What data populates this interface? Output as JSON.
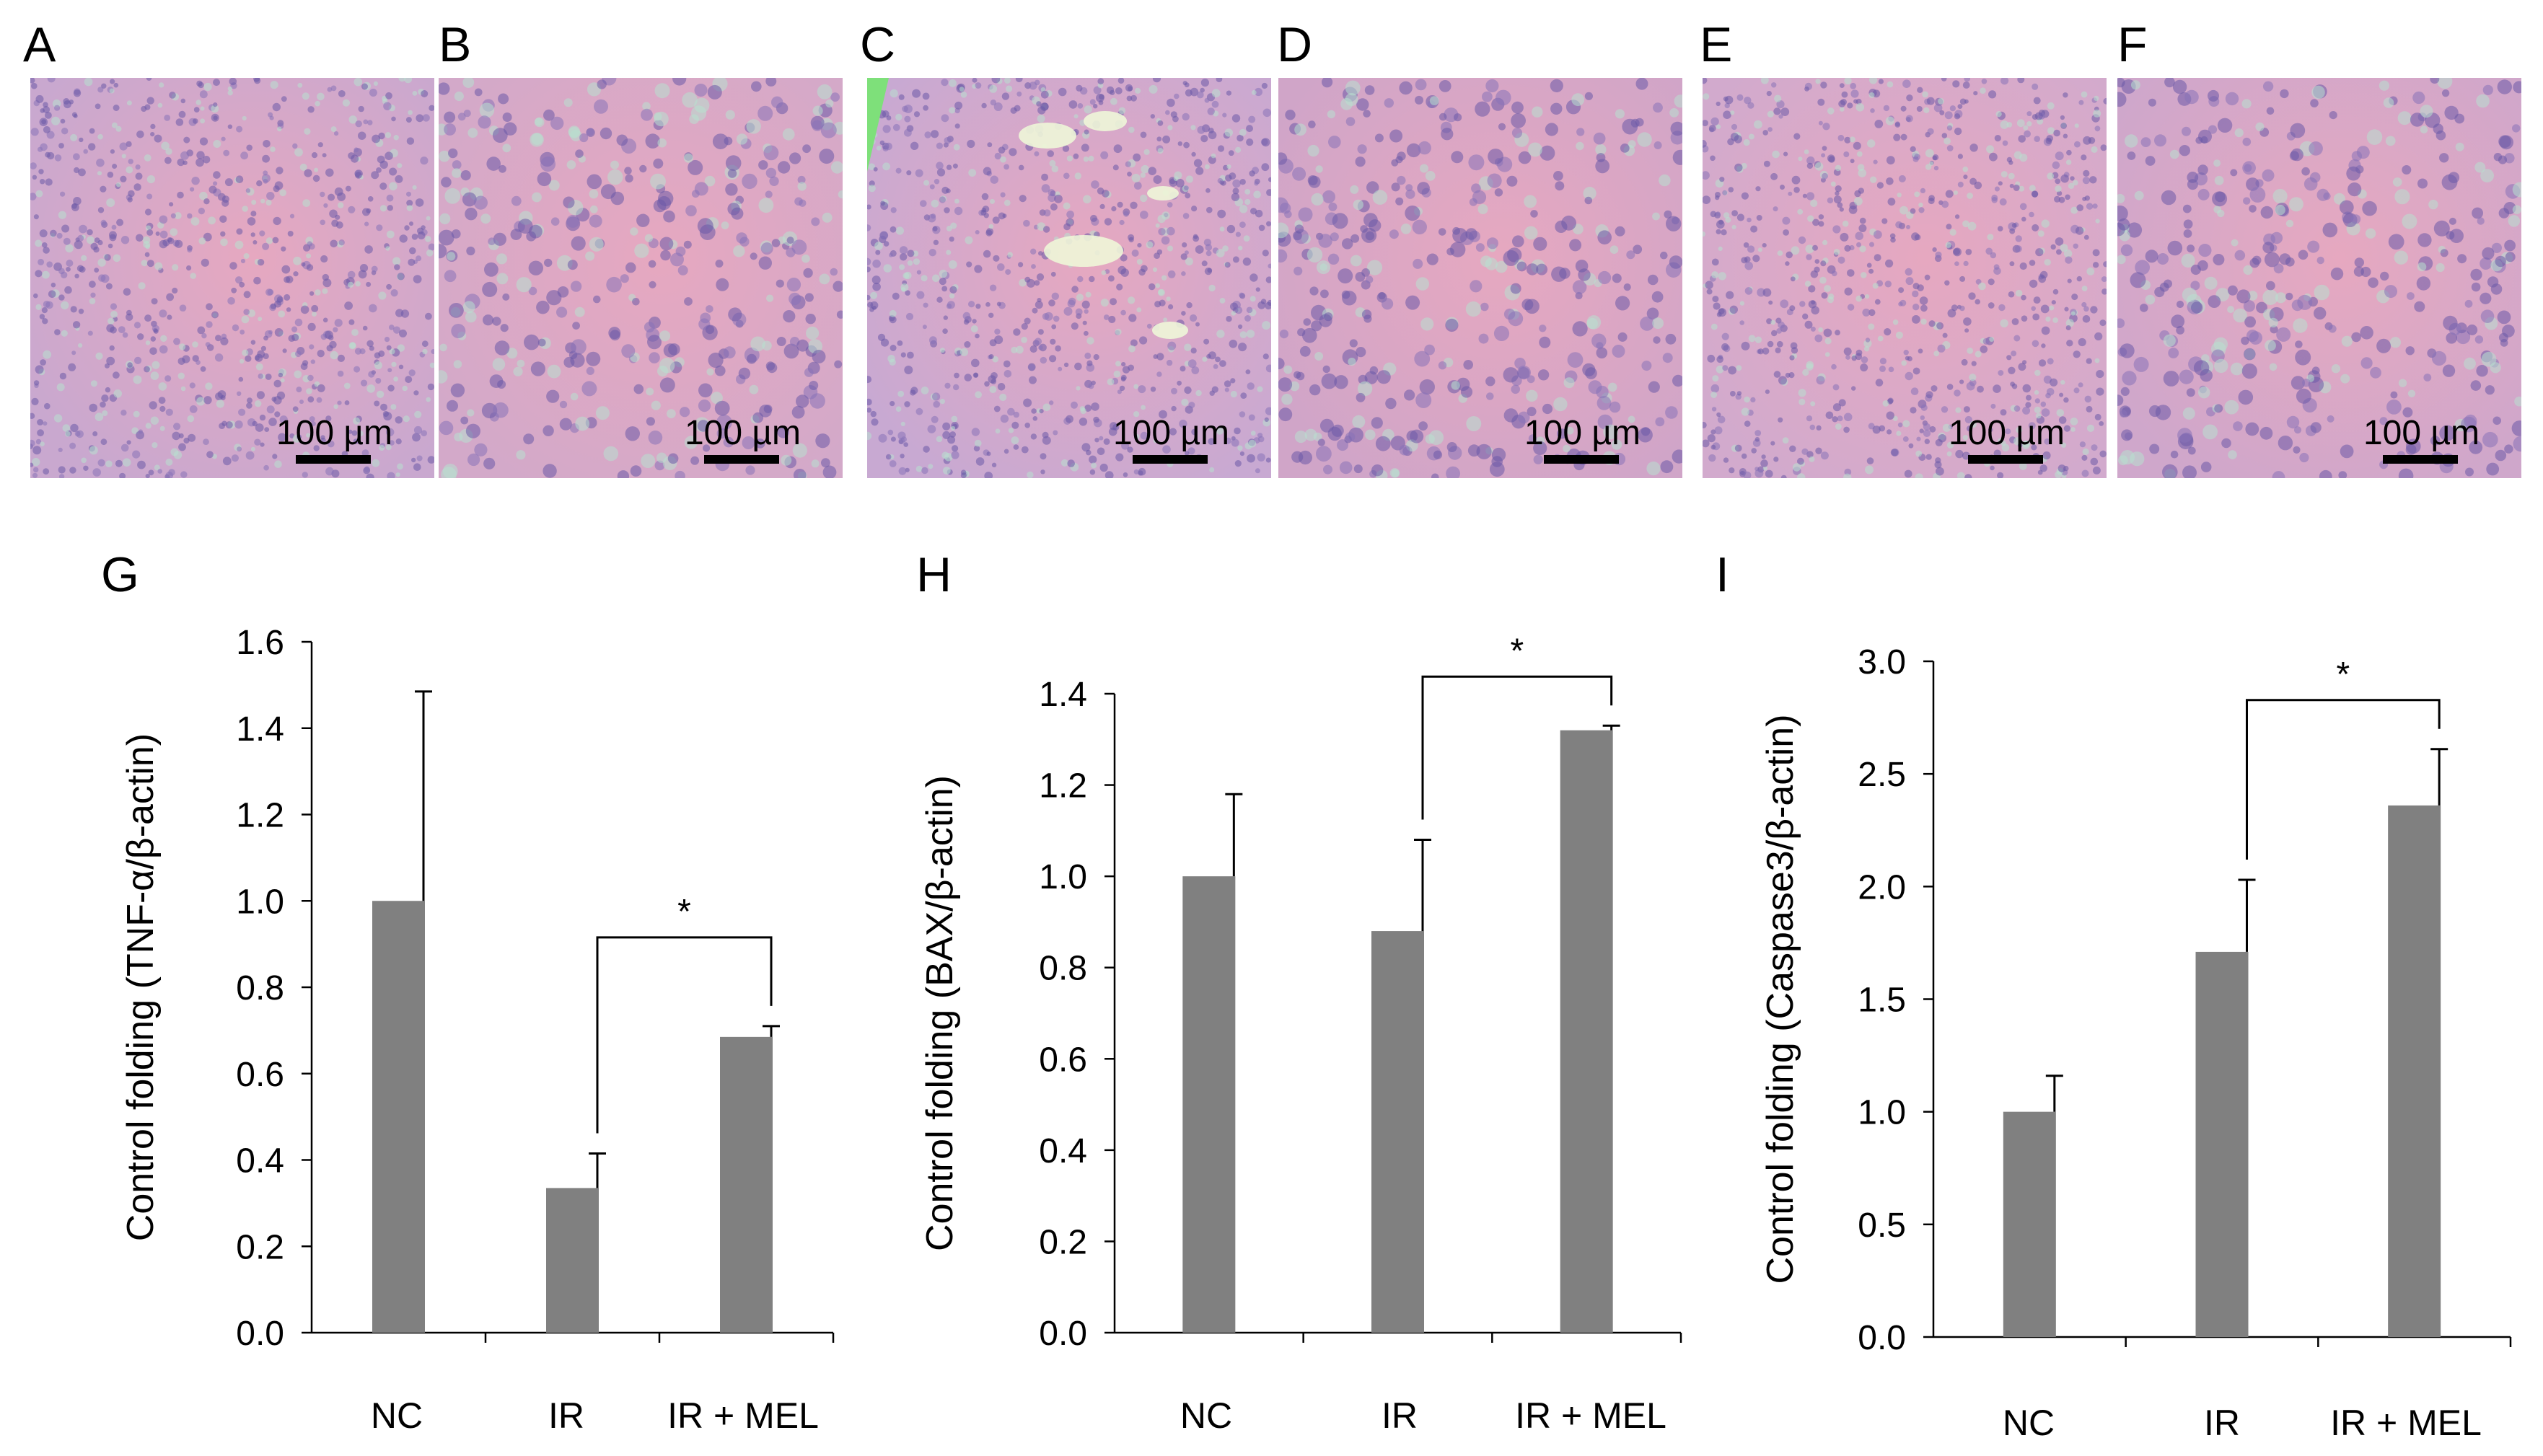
{
  "micrographs": [
    {
      "letter": "A",
      "scale_label": "100 µm",
      "tone": "#c9a8cf"
    },
    {
      "letter": "B",
      "scale_label": "100 µm",
      "tone": "#d3a9c9"
    },
    {
      "letter": "C",
      "scale_label": "100 µm",
      "tone": "#c8a9d2"
    },
    {
      "letter": "D",
      "scale_label": "100 µm",
      "tone": "#d0a5c8"
    },
    {
      "letter": "E",
      "scale_label": "100 µm",
      "tone": "#d2aacd"
    },
    {
      "letter": "F",
      "scale_label": "100 µm",
      "tone": "#cfa7cb"
    }
  ],
  "chart_data": [
    {
      "type": "bar",
      "panel": "G",
      "categories": [
        "NC",
        "IR",
        "IR + MEL"
      ],
      "values": [
        1.0,
        0.335,
        0.685
      ],
      "errors": [
        0.485,
        0.08,
        0.025
      ],
      "ylabel": "Control folding (TNF-α/β-actin)",
      "ylim": [
        0,
        1.6
      ],
      "ticks": [
        "0.0",
        "0.2",
        "0.4",
        "0.6",
        "0.8",
        "1.0",
        "1.2",
        "1.4",
        "1.6"
      ],
      "significance": {
        "from": 1,
        "to": 2,
        "label": "*"
      },
      "bar_color": "#808080"
    },
    {
      "type": "bar",
      "panel": "H",
      "categories": [
        "NC",
        "IR",
        "IR + MEL"
      ],
      "values": [
        1.0,
        0.88,
        1.32
      ],
      "errors": [
        0.18,
        0.2,
        0.01
      ],
      "ylabel": "Control folding (BAX/β-actin)",
      "ylim": [
        0,
        1.4
      ],
      "ticks": [
        "0.0",
        "0.2",
        "0.4",
        "0.6",
        "0.8",
        "1.0",
        "1.2",
        "1.4"
      ],
      "significance": {
        "from": 1,
        "to": 2,
        "label": "*"
      },
      "bar_color": "#808080"
    },
    {
      "type": "bar",
      "panel": "I",
      "categories": [
        "NC",
        "IR",
        "IR + MEL"
      ],
      "values": [
        1.0,
        1.71,
        2.36
      ],
      "errors": [
        0.16,
        0.32,
        0.25
      ],
      "ylabel": "Control folding (Caspase3/β-actin)",
      "ylim": [
        0,
        3.0
      ],
      "ticks": [
        "0.0",
        "0.5",
        "1.0",
        "1.5",
        "2.0",
        "2.5",
        "3.0"
      ],
      "significance": {
        "from": 1,
        "to": 2,
        "label": "*"
      },
      "bar_color": "#808080"
    }
  ]
}
